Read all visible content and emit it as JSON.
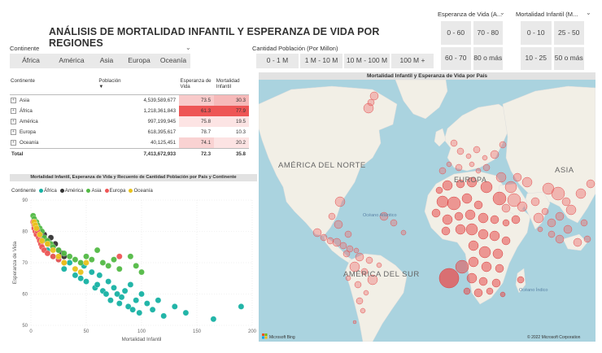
{
  "title": "ANÁLISIS DE MORTALIDAD INFANTIL Y ESPERANZA DE VIDA POR REGIONES",
  "slicer_continente": {
    "label": "Continente",
    "items": [
      "África",
      "América",
      "Asia",
      "Europa",
      "Oceanía"
    ]
  },
  "slicer_poblacion": {
    "label": "Cantidad Población (Por Millon)",
    "items": [
      "0 - 1 M",
      "1 M - 10 M",
      "10 M - 100 M",
      "100 M +"
    ]
  },
  "slicer_esperanza": {
    "label": "Esperanza de Vida (A...",
    "items": [
      "0 - 60",
      "70 - 80",
      "60 - 70",
      "80 o más"
    ]
  },
  "slicer_mortalidad": {
    "label": "Mortalidad Infantil (M...",
    "items": [
      "0 - 10",
      "25 - 50",
      "10 - 25",
      "50 o más"
    ]
  },
  "matrix": {
    "headers": {
      "c0": "Continente",
      "c1": "Población",
      "c2": "Esperanza de Vida",
      "c3": "Mortalidad Infantil"
    },
    "rows": [
      {
        "name": "Asia",
        "pop": "4,539,589,677",
        "life": "73.5",
        "mort": "30.3",
        "lifebg": "#f8caca",
        "mortbg": "#f6b9b9"
      },
      {
        "name": "África",
        "pop": "1,218,361,843",
        "life": "61.3",
        "mort": "77.9",
        "lifebg": "#ee5555",
        "mortbg": "#ee5555"
      },
      {
        "name": "América",
        "pop": "997,199,945",
        "life": "75.8",
        "mort": "19.5",
        "lifebg": "#fde4e4",
        "mortbg": "#fce4e4"
      },
      {
        "name": "Europa",
        "pop": "618,395,617",
        "life": "78.7",
        "mort": "10.3",
        "lifebg": "#ffffff",
        "mortbg": "#ffffff"
      },
      {
        "name": "Oceanía",
        "pop": "40,125,451",
        "life": "74.1",
        "mort": "20.2",
        "lifebg": "#f9d2d2",
        "mortbg": "#fce3e3"
      }
    ],
    "total": {
      "name": "Total",
      "pop": "7,413,672,933",
      "life": "72.3",
      "mort": "35.8"
    }
  },
  "scatter": {
    "header": "Mortalidad Infantil, Esperanza de Vida y Recuento de Cantidad Población por País y Continente",
    "legend_title": "Continente",
    "legend": [
      {
        "name": "África",
        "color": "#16b1a3"
      },
      {
        "name": "América",
        "color": "#333333"
      },
      {
        "name": "Asia",
        "color": "#52b944"
      },
      {
        "name": "Europa",
        "color": "#ee5555"
      },
      {
        "name": "Oceanía",
        "color": "#e9c21c"
      }
    ]
  },
  "chart_data": {
    "type": "scatter",
    "title": "Mortalidad Infantil, Esperanza de Vida y Recuento de Cantidad Población por País y Continente",
    "xlabel": "Mortalidad Infantil",
    "ylabel": "Esperanza de Vida",
    "xlim": [
      0,
      200
    ],
    "ylim": [
      50,
      90
    ],
    "xticks": [
      0,
      50,
      100,
      150,
      200
    ],
    "yticks": [
      50,
      60,
      70,
      80,
      90
    ],
    "series": [
      {
        "name": "África",
        "color": "#16b1a3",
        "x": [
          15,
          20,
          25,
          28,
          30,
          35,
          40,
          45,
          48,
          50,
          55,
          58,
          60,
          62,
          65,
          68,
          70,
          72,
          75,
          78,
          80,
          82,
          85,
          88,
          90,
          92,
          95,
          98,
          100,
          105,
          110,
          115,
          120,
          130,
          140,
          165,
          190
        ],
        "y": [
          74,
          72,
          71,
          73,
          68,
          70,
          66,
          65,
          69,
          64,
          67,
          62,
          63,
          66,
          61,
          60,
          64,
          58,
          62,
          60,
          57,
          59,
          61,
          56,
          63,
          55,
          58,
          54,
          60,
          57,
          55,
          58,
          53,
          56,
          54,
          52,
          56
        ]
      },
      {
        "name": "América",
        "color": "#333333",
        "x": [
          3,
          4,
          5,
          6,
          8,
          10,
          12,
          14,
          16,
          18,
          20,
          22,
          25,
          28,
          30
        ],
        "y": [
          82,
          81,
          80,
          79,
          80,
          78,
          79,
          77,
          76,
          78,
          75,
          76,
          74,
          73,
          72
        ]
      },
      {
        "name": "Asia",
        "color": "#52b944",
        "x": [
          2,
          3,
          5,
          6,
          8,
          10,
          12,
          15,
          18,
          20,
          25,
          30,
          35,
          40,
          45,
          50,
          55,
          60,
          65,
          70,
          75,
          80,
          90,
          95,
          100
        ],
        "y": [
          85,
          84,
          83,
          82,
          81,
          80,
          78,
          77,
          76,
          75,
          74,
          73,
          72,
          71,
          70,
          72,
          71,
          74,
          70,
          69,
          71,
          68,
          72,
          69,
          67
        ]
      },
      {
        "name": "Europa",
        "color": "#ee5555",
        "x": [
          2,
          3,
          3,
          4,
          4,
          5,
          5,
          6,
          7,
          8,
          9,
          10,
          12,
          15,
          20,
          25,
          30,
          80
        ],
        "y": [
          83,
          82,
          81,
          82,
          80,
          81,
          79,
          80,
          78,
          77,
          76,
          75,
          74,
          73,
          72,
          71,
          70,
          72
        ]
      },
      {
        "name": "Oceanía",
        "color": "#e9c21c",
        "x": [
          3,
          4,
          5,
          8,
          10,
          15,
          20,
          25,
          30,
          40,
          45,
          50
        ],
        "y": [
          83,
          82,
          81,
          79,
          77,
          76,
          74,
          72,
          70,
          68,
          67,
          70
        ]
      }
    ]
  },
  "map": {
    "header": "Mortalidad Infantil y Esperanza de Vida por País",
    "labels": {
      "na": "AMÉRICA DEL NORTE",
      "sa": "AMÉRICA DEL SUR",
      "eu": "EUROPA",
      "as": "ASIA",
      "atl": "Océano Atlántico",
      "ind": "Océano Índico"
    },
    "bing": "Microsoft Bing",
    "copyright": "© 2022 Microsoft Corporation"
  }
}
